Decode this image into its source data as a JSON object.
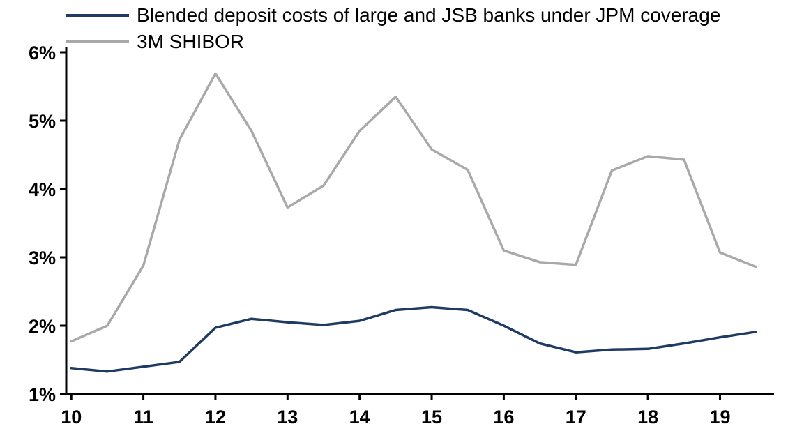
{
  "chart_data": {
    "type": "line",
    "title": "",
    "xlabel": "",
    "ylabel": "",
    "grid": false,
    "legend_position": "top-left",
    "axis_color": "#000000",
    "xlim": [
      9.93,
      19.75
    ],
    "ylim": [
      1,
      6
    ],
    "x_ticks": [
      10,
      11,
      12,
      13,
      14,
      15,
      16,
      17,
      18,
      19
    ],
    "x_tick_labels": [
      "10",
      "11",
      "12",
      "13",
      "14",
      "15",
      "16",
      "17",
      "18",
      "19"
    ],
    "y_ticks": [
      1,
      2,
      3,
      4,
      5,
      6
    ],
    "y_tick_labels": [
      "1%",
      "2%",
      "3%",
      "4%",
      "5%",
      "6%"
    ],
    "x": [
      10.0,
      10.5,
      11.0,
      11.5,
      12.0,
      12.5,
      13.0,
      13.5,
      14.0,
      14.5,
      15.0,
      15.5,
      16.0,
      16.5,
      17.0,
      17.5,
      18.0,
      18.5,
      19.0,
      19.5
    ],
    "series": [
      {
        "name": "Blended deposit costs of large and JSB banks under JPM coverage",
        "color": "#1f3a63",
        "values": [
          1.38,
          1.33,
          1.4,
          1.47,
          1.97,
          2.1,
          2.05,
          2.01,
          2.07,
          2.23,
          2.27,
          2.23,
          2.0,
          1.74,
          1.61,
          1.65,
          1.66,
          1.74,
          1.83,
          1.91
        ]
      },
      {
        "name": "3M SHIBOR",
        "color": "#a9a9a9",
        "values": [
          1.77,
          2.0,
          2.88,
          4.72,
          5.69,
          4.85,
          3.73,
          4.05,
          4.85,
          5.35,
          4.58,
          4.28,
          3.1,
          2.93,
          2.89,
          4.27,
          4.48,
          4.43,
          3.07,
          2.86
        ]
      }
    ]
  }
}
